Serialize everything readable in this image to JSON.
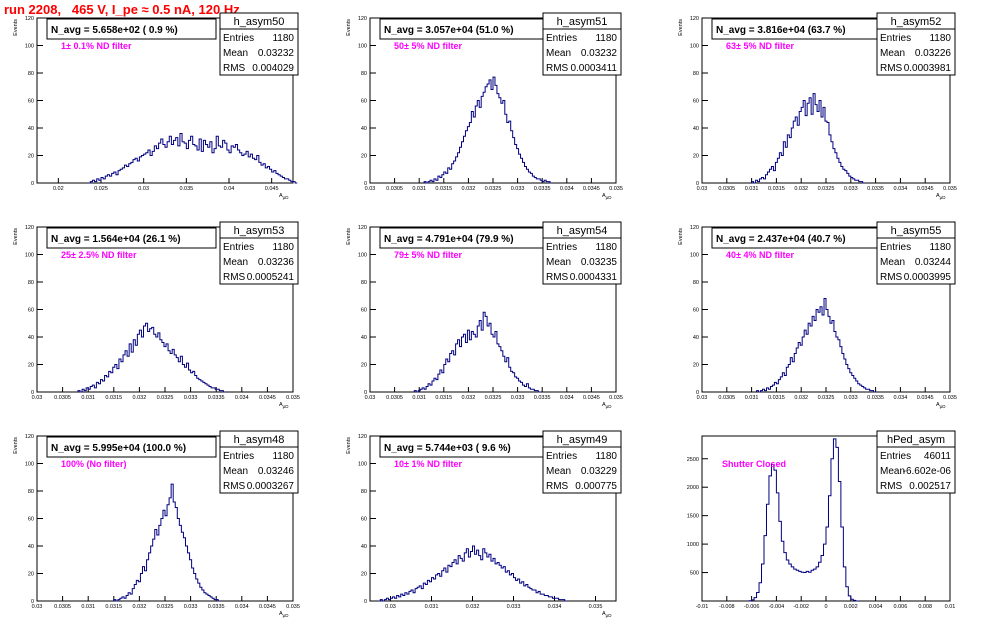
{
  "page": {
    "title": "run 2208,   465 V, I_pe ≈ 0.5 nA, 120 Hz"
  },
  "chart_data": [
    {
      "type": "histogram",
      "name": "h_asym50",
      "title": "N_avg = 5.658e+02 ( 0.9 %)",
      "annotation": "1± 0.1% ND filter",
      "ylabel": "Events",
      "xlabel": "A_μD",
      "xlim": [
        0.0175,
        0.0475
      ],
      "ylim": [
        0,
        120
      ],
      "xticks": [
        0.02,
        0.025,
        0.03,
        0.035,
        0.04,
        0.045
      ],
      "xtick_labels": [
        "0.02",
        "0.025",
        "0.03",
        "0.035",
        "0.04",
        "0.045"
      ],
      "yticks": [
        0,
        20,
        40,
        60,
        80,
        100,
        120
      ],
      "stats": [
        {
          "label": "Entries",
          "value": "1180"
        },
        {
          "label": "Mean",
          "value": "0.03232"
        },
        {
          "label": "RMS",
          "value": "0.004029"
        }
      ],
      "bins": {
        "start": 0.0235,
        "width": 0.00025,
        "counts": [
          0,
          1,
          2,
          1,
          3,
          2,
          4,
          3,
          5,
          6,
          5,
          7,
          8,
          6,
          9,
          10,
          11,
          13,
          12,
          14,
          15,
          17,
          18,
          16,
          19,
          20,
          21,
          22,
          24,
          20,
          23,
          27,
          25,
          29,
          32,
          28,
          26,
          30,
          34,
          28,
          31,
          33,
          27,
          36,
          30,
          29,
          25,
          31,
          34,
          28,
          27,
          24,
          32,
          23,
          31,
          28,
          26,
          30,
          22,
          25,
          34,
          27,
          26,
          31,
          29,
          24,
          22,
          27,
          26,
          28,
          24,
          22,
          20,
          21,
          23,
          19,
          21,
          18,
          17,
          20,
          15,
          13,
          14,
          11,
          12,
          10,
          8,
          9,
          7,
          6,
          5,
          4,
          3,
          3,
          2,
          1,
          1,
          0
        ]
      }
    },
    {
      "type": "histogram",
      "name": "h_asym51",
      "title": "N_avg = 3.057e+04 (51.0 %)",
      "annotation": "50± 5% ND filter",
      "ylabel": "Events",
      "xlabel": "A_μD",
      "xlim": [
        0.03,
        0.035
      ],
      "ylim": [
        0,
        120
      ],
      "xticks": [
        0.03,
        0.0305,
        0.031,
        0.0315,
        0.032,
        0.0325,
        0.033,
        0.0335,
        0.034,
        0.0345,
        0.035
      ],
      "xtick_labels": [
        "0.03",
        "0.0305",
        "0.031",
        "0.0315",
        "0.032",
        "0.0325",
        "0.033",
        "0.0335",
        "0.034",
        "0.0345",
        "0.035"
      ],
      "yticks": [
        0,
        20,
        40,
        60,
        80,
        100,
        120
      ],
      "stats": [
        {
          "label": "Entries",
          "value": "1180"
        },
        {
          "label": "Mean",
          "value": "0.03232"
        },
        {
          "label": "RMS",
          "value": "0.0003411"
        }
      ],
      "bins": {
        "start": 0.0311,
        "width": 4e-05,
        "counts": [
          1,
          0,
          1,
          2,
          1,
          3,
          2,
          5,
          4,
          6,
          8,
          7,
          11,
          10,
          14,
          16,
          19,
          22,
          26,
          30,
          34,
          38,
          41,
          44,
          52,
          48,
          56,
          60,
          55,
          63,
          66,
          70,
          72,
          75,
          68,
          77,
          71,
          65,
          62,
          58,
          60,
          50,
          44,
          45,
          38,
          33,
          28,
          25,
          21,
          18,
          15,
          12,
          10,
          8,
          7,
          5,
          4,
          3,
          3,
          2,
          1,
          2,
          1,
          1,
          0
        ]
      }
    },
    {
      "type": "histogram",
      "name": "h_asym52",
      "title": "N_avg = 3.816e+04 (63.7 %)",
      "annotation": "63± 5% ND filter",
      "ylabel": "Events",
      "xlabel": "A_μD",
      "xlim": [
        0.03,
        0.035
      ],
      "ylim": [
        0,
        120
      ],
      "xticks": [
        0.03,
        0.0305,
        0.031,
        0.0315,
        0.032,
        0.0325,
        0.033,
        0.0335,
        0.034,
        0.0345,
        0.035
      ],
      "xtick_labels": [
        "0.03",
        "0.0305",
        "0.031",
        "0.0315",
        "0.032",
        "0.0325",
        "0.033",
        "0.0335",
        "0.034",
        "0.0345",
        "0.035"
      ],
      "yticks": [
        0,
        20,
        40,
        60,
        80,
        100,
        120
      ],
      "stats": [
        {
          "label": "Entries",
          "value": "1180"
        },
        {
          "label": "Mean",
          "value": "0.03226"
        },
        {
          "label": "RMS",
          "value": "0.0003981"
        }
      ],
      "bins": {
        "start": 0.031,
        "width": 4e-05,
        "counts": [
          1,
          0,
          2,
          1,
          3,
          4,
          3,
          6,
          8,
          10,
          12,
          9,
          15,
          18,
          22,
          20,
          30,
          26,
          35,
          33,
          40,
          45,
          48,
          42,
          52,
          55,
          60,
          49,
          58,
          62,
          50,
          65,
          57,
          52,
          60,
          48,
          55,
          45,
          44,
          35,
          30,
          25,
          22,
          18,
          15,
          12,
          10,
          9,
          7,
          5,
          4,
          3,
          2,
          2,
          1,
          1,
          0
        ]
      }
    },
    {
      "type": "histogram",
      "name": "h_asym53",
      "title": "N_avg = 1.564e+04 (26.1 %)",
      "annotation": "25± 2.5% ND filter",
      "ylabel": "Events",
      "xlabel": "A_μD",
      "xlim": [
        0.03,
        0.035
      ],
      "ylim": [
        0,
        120
      ],
      "xticks": [
        0.03,
        0.0305,
        0.031,
        0.0315,
        0.032,
        0.0325,
        0.033,
        0.0335,
        0.034,
        0.0345,
        0.035
      ],
      "xtick_labels": [
        "0.03",
        "0.0305",
        "0.031",
        "0.0315",
        "0.032",
        "0.0325",
        "0.033",
        "0.0335",
        "0.034",
        "0.0345",
        "0.035"
      ],
      "yticks": [
        0,
        20,
        40,
        60,
        80,
        100,
        120
      ],
      "stats": [
        {
          "label": "Entries",
          "value": "1180"
        },
        {
          "label": "Mean",
          "value": "0.03236"
        },
        {
          "label": "RMS",
          "value": "0.0005241"
        }
      ],
      "bins": {
        "start": 0.0308,
        "width": 4e-05,
        "counts": [
          1,
          0,
          2,
          1,
          3,
          2,
          4,
          5,
          3,
          7,
          6,
          9,
          8,
          12,
          11,
          15,
          14,
          18,
          20,
          17,
          24,
          22,
          27,
          30,
          26,
          35,
          29,
          38,
          34,
          42,
          45,
          40,
          48,
          50,
          44,
          46,
          47,
          42,
          40,
          43,
          38,
          36,
          33,
          35,
          30,
          28,
          31,
          27,
          25,
          22,
          26,
          20,
          18,
          21,
          16,
          14,
          15,
          12,
          10,
          9,
          8,
          7,
          6,
          5,
          4,
          3,
          3,
          2,
          2,
          1,
          1,
          0
        ]
      }
    },
    {
      "type": "histogram",
      "name": "h_asym54",
      "title": "N_avg = 4.791e+04 (79.9 %)",
      "annotation": "79± 5% ND filter",
      "ylabel": "Events",
      "xlabel": "A_μD",
      "xlim": [
        0.03,
        0.035
      ],
      "ylim": [
        0,
        120
      ],
      "xticks": [
        0.03,
        0.0305,
        0.031,
        0.0315,
        0.032,
        0.0325,
        0.033,
        0.0335,
        0.034,
        0.0345,
        0.035
      ],
      "xtick_labels": [
        "0.03",
        "0.0305",
        "0.031",
        "0.0315",
        "0.032",
        "0.0325",
        "0.033",
        "0.0335",
        "0.034",
        "0.0345",
        "0.035"
      ],
      "yticks": [
        0,
        20,
        40,
        60,
        80,
        100,
        120
      ],
      "stats": [
        {
          "label": "Entries",
          "value": "1180"
        },
        {
          "label": "Mean",
          "value": "0.03235"
        },
        {
          "label": "RMS",
          "value": "0.0004331"
        }
      ],
      "bins": {
        "start": 0.0309,
        "width": 4e-05,
        "counts": [
          1,
          0,
          1,
          2,
          3,
          2,
          4,
          6,
          5,
          8,
          10,
          9,
          13,
          16,
          14,
          20,
          24,
          22,
          28,
          30,
          27,
          35,
          38,
          33,
          40,
          42,
          36,
          45,
          38,
          44,
          42,
          40,
          48,
          52,
          45,
          58,
          55,
          48,
          50,
          42,
          40,
          44,
          35,
          33,
          30,
          26,
          22,
          25,
          18,
          15,
          14,
          11,
          10,
          8,
          7,
          5,
          4,
          6,
          3,
          2,
          2,
          1,
          1,
          0
        ]
      }
    },
    {
      "type": "histogram",
      "name": "h_asym55",
      "title": "N_avg = 2.437e+04 (40.7 %)",
      "annotation": "40± 4% ND filter",
      "ylabel": "Events",
      "xlabel": "A_μD",
      "xlim": [
        0.03,
        0.035
      ],
      "ylim": [
        0,
        120
      ],
      "xticks": [
        0.03,
        0.0305,
        0.031,
        0.0315,
        0.032,
        0.0325,
        0.033,
        0.0335,
        0.034,
        0.0345,
        0.035
      ],
      "xtick_labels": [
        "0.03",
        "0.0305",
        "0.031",
        "0.0315",
        "0.032",
        "0.0325",
        "0.033",
        "0.0335",
        "0.034",
        "0.0345",
        "0.035"
      ],
      "yticks": [
        0,
        20,
        40,
        60,
        80,
        100,
        120
      ],
      "stats": [
        {
          "label": "Entries",
          "value": "1180"
        },
        {
          "label": "Mean",
          "value": "0.03244"
        },
        {
          "label": "RMS",
          "value": "0.0003995"
        }
      ],
      "bins": {
        "start": 0.0311,
        "width": 4e-05,
        "counts": [
          1,
          0,
          1,
          2,
          1,
          3,
          2,
          4,
          5,
          7,
          6,
          9,
          11,
          14,
          12,
          18,
          20,
          25,
          22,
          28,
          32,
          36,
          34,
          40,
          45,
          42,
          50,
          48,
          55,
          52,
          60,
          58,
          62,
          56,
          68,
          60,
          55,
          50,
          52,
          44,
          40,
          38,
          33,
          28,
          24,
          20,
          17,
          14,
          12,
          10,
          8,
          6,
          5,
          4,
          3,
          2,
          2,
          1,
          1,
          0
        ]
      }
    },
    {
      "type": "histogram",
      "name": "h_asym48",
      "title": "N_avg = 5.995e+04 (100.0 %)",
      "annotation": "100% (No filter)",
      "ylabel": "Events",
      "xlabel": "A_μD",
      "xlim": [
        0.03,
        0.035
      ],
      "ylim": [
        0,
        120
      ],
      "xticks": [
        0.03,
        0.0305,
        0.031,
        0.0315,
        0.032,
        0.0325,
        0.033,
        0.0335,
        0.034,
        0.0345,
        0.035
      ],
      "xtick_labels": [
        "0.03",
        "0.0305",
        "0.031",
        "0.0315",
        "0.032",
        "0.0325",
        "0.033",
        "0.0335",
        "0.034",
        "0.0345",
        "0.035"
      ],
      "yticks": [
        0,
        20,
        40,
        60,
        80,
        100,
        120
      ],
      "stats": [
        {
          "label": "Entries",
          "value": "1180"
        },
        {
          "label": "Mean",
          "value": "0.03246"
        },
        {
          "label": "RMS",
          "value": "0.0003267"
        }
      ],
      "bins": {
        "start": 0.0315,
        "width": 4e-05,
        "counts": [
          1,
          0,
          1,
          2,
          3,
          2,
          4,
          6,
          5,
          9,
          12,
          15,
          14,
          20,
          25,
          22,
          30,
          35,
          40,
          45,
          52,
          48,
          55,
          60,
          66,
          62,
          70,
          75,
          85,
          72,
          68,
          60,
          55,
          50,
          46,
          40,
          35,
          30,
          24,
          20,
          16,
          13,
          10,
          8,
          6,
          5,
          4,
          3,
          2,
          1,
          1,
          0
        ]
      }
    },
    {
      "type": "histogram",
      "name": "h_asym49",
      "title": "N_avg = 5.744e+03 ( 9.6 %)",
      "annotation": "10± 1% ND filter",
      "ylabel": "Events",
      "xlabel": "A_μD",
      "xlim": [
        0.0295,
        0.0355
      ],
      "ylim": [
        0,
        120
      ],
      "xticks": [
        0.03,
        0.031,
        0.032,
        0.033,
        0.034,
        0.035
      ],
      "xtick_labels": [
        "0.03",
        "0.031",
        "0.032",
        "0.033",
        "0.034",
        "0.035"
      ],
      "yticks": [
        0,
        20,
        40,
        60,
        80,
        100,
        120
      ],
      "stats": [
        {
          "label": "Entries",
          "value": "1180"
        },
        {
          "label": "Mean",
          "value": "0.03229"
        },
        {
          "label": "RMS",
          "value": "0.000775"
        }
      ],
      "bins": {
        "start": 0.0297,
        "width": 5e-05,
        "counts": [
          0,
          1,
          0,
          1,
          2,
          1,
          2,
          3,
          2,
          4,
          3,
          5,
          4,
          6,
          5,
          7,
          8,
          6,
          9,
          10,
          11,
          9,
          13,
          12,
          15,
          14,
          17,
          16,
          19,
          20,
          18,
          22,
          24,
          21,
          26,
          25,
          28,
          30,
          27,
          33,
          31,
          29,
          35,
          38,
          32,
          36,
          40,
          34,
          37,
          33,
          30,
          38,
          35,
          32,
          34,
          29,
          31,
          27,
          28,
          26,
          24,
          25,
          21,
          22,
          19,
          20,
          17,
          15,
          16,
          13,
          14,
          11,
          12,
          10,
          9,
          8,
          8,
          6,
          7,
          5,
          5,
          4,
          4,
          3,
          3,
          2,
          2,
          2,
          1,
          1,
          1,
          0
        ]
      }
    },
    {
      "type": "histogram",
      "name": "hPed_asym",
      "title": "",
      "annotation": "Shutter Closed",
      "ylabel": "",
      "xlabel": "",
      "xlim": [
        -0.01,
        0.01
      ],
      "ylim": [
        0,
        2900
      ],
      "xticks": [
        -0.01,
        -0.008,
        -0.006,
        -0.004,
        -0.002,
        0,
        0.002,
        0.004,
        0.006,
        0.008,
        0.01
      ],
      "xtick_labels": [
        "-0.01",
        "-0.008",
        "-0.006",
        "-0.004",
        "-0.002",
        "0",
        "0.002",
        "0.004",
        "0.006",
        "0.008",
        "0.01"
      ],
      "yticks": [
        500,
        1000,
        1500,
        2000,
        2500
      ],
      "stats": [
        {
          "label": "Entries",
          "value": "46011"
        },
        {
          "label": "Mean",
          "value": "-6.602e-06"
        },
        {
          "label": "RMS",
          "value": "0.002517"
        }
      ],
      "bins": {
        "start": -0.0062,
        "width": 0.0002,
        "counts": [
          5,
          20,
          60,
          150,
          320,
          650,
          1150,
          1700,
          2200,
          2400,
          2300,
          1900,
          1400,
          1050,
          850,
          720,
          650,
          600,
          560,
          540,
          520,
          505,
          500,
          520,
          505,
          540,
          560,
          600,
          680,
          800,
          1000,
          1300,
          1850,
          2500,
          2850,
          2700,
          2100,
          1300,
          600,
          250,
          90,
          30,
          10,
          0
        ]
      }
    }
  ]
}
